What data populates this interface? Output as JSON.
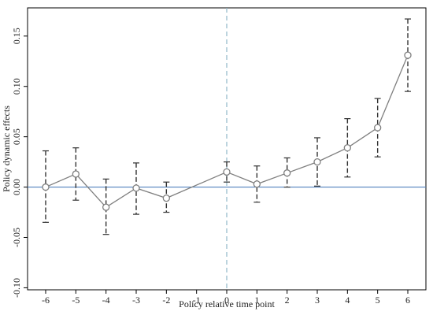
{
  "chart_data": {
    "type": "line",
    "xlabel": "Policy relative time point",
    "ylabel": "Policy dynamic effects",
    "x": [
      -6,
      -5,
      -4,
      -3,
      -2,
      0,
      1,
      2,
      3,
      4,
      5,
      6
    ],
    "y": [
      0.0,
      0.013,
      -0.02,
      -0.001,
      -0.011,
      0.015,
      0.003,
      0.014,
      0.025,
      0.039,
      0.059,
      0.131
    ],
    "ci_lower": [
      -0.035,
      -0.013,
      -0.047,
      -0.027,
      -0.025,
      0.005,
      -0.015,
      0.0,
      0.001,
      0.01,
      0.03,
      0.095
    ],
    "ci_upper": [
      0.036,
      0.039,
      0.008,
      0.024,
      0.005,
      0.025,
      0.021,
      0.029,
      0.049,
      0.068,
      0.088,
      0.167
    ],
    "xlim": [
      -6.6,
      6.6
    ],
    "ylim": [
      -0.102,
      0.178
    ],
    "xticks": [
      -6,
      -5,
      -4,
      -3,
      -2,
      -1,
      0,
      1,
      2,
      3,
      4,
      5,
      6
    ],
    "yticks": [
      -0.1,
      -0.05,
      0.0,
      0.05,
      0.1,
      0.15
    ],
    "ytick_labels": [
      "-0.10",
      "-0.05",
      "0.00",
      "0.05",
      "0.10",
      "0.15"
    ],
    "reference_lines": {
      "horizontal_y": 0,
      "vertical_x": 0
    },
    "colors": {
      "series_line": "#7f7f7f",
      "marker": "#7f7f7f",
      "ci_bar": "#333333",
      "zero_hline": "#4f81bd",
      "zero_vline": "#8fb8c9"
    },
    "marker": "hollow-circle",
    "grid": false
  }
}
